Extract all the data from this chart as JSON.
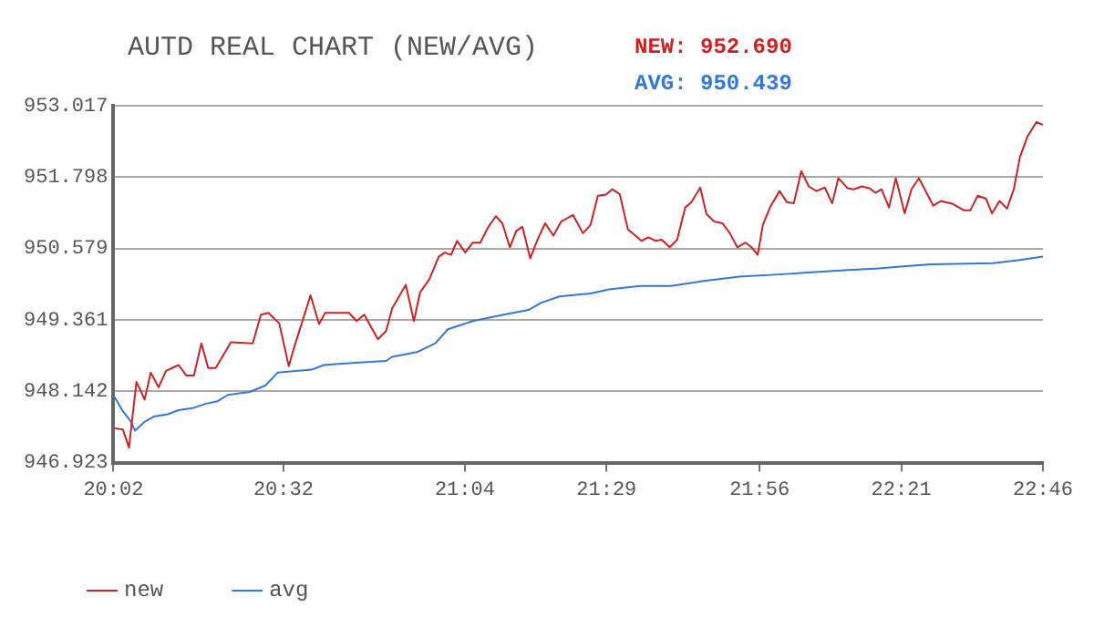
{
  "chart_data": {
    "type": "line",
    "title": "AUTD REAL CHART (NEW/AVG)",
    "annotations": [
      "NEW: 952.690",
      "AVG: 950.439"
    ],
    "xlim": [
      20.0333,
      22.7667
    ],
    "xticks": [
      {
        "value": 20.0333,
        "label": "20:02"
      },
      {
        "value": 20.5333,
        "label": "20:32"
      },
      {
        "value": 21.0667,
        "label": "21:04"
      },
      {
        "value": 21.4833,
        "label": "21:29"
      },
      {
        "value": 21.9333,
        "label": "21:56"
      },
      {
        "value": 22.35,
        "label": "22:21"
      },
      {
        "value": 22.7667,
        "label": "22:46"
      }
    ],
    "ylim": [
      946.923,
      953.017
    ],
    "yticks": [
      946.923,
      948.142,
      949.361,
      950.579,
      951.798,
      953.017
    ],
    "grid": "y",
    "legend": "bottom left",
    "marker": "none",
    "line_style": "solid",
    "series": [
      {
        "name": "new",
        "color": "#cc2222",
        "x": [
          20.037,
          20.061,
          20.079,
          20.088,
          20.101,
          20.115,
          20.125,
          20.143,
          20.166,
          20.188,
          20.225,
          20.248,
          20.27,
          20.292,
          20.312,
          20.334,
          20.379,
          20.443,
          20.467,
          20.489,
          20.521,
          20.549,
          20.562,
          20.613,
          20.638,
          20.656,
          20.726,
          20.748,
          20.771,
          20.811,
          20.835,
          20.853,
          20.893,
          20.917,
          20.935,
          20.962,
          20.99,
          21.008,
          21.026,
          21.044,
          21.068,
          21.09,
          21.112,
          21.136,
          21.158,
          21.177,
          21.199,
          21.218,
          21.236,
          21.259,
          21.281,
          21.303,
          21.327,
          21.35,
          21.385,
          21.414,
          21.436,
          21.458,
          21.482,
          21.5,
          21.522,
          21.546,
          21.586,
          21.606,
          21.628,
          21.646,
          21.669,
          21.691,
          21.715,
          21.733,
          21.759,
          21.777,
          21.8,
          21.824,
          21.846,
          21.868,
          21.892,
          21.91,
          21.928,
          21.943,
          21.964,
          21.992,
          22.014,
          22.034,
          22.056,
          22.078,
          22.101,
          22.125,
          22.147,
          22.165,
          22.192,
          22.21,
          22.234,
          22.256,
          22.274,
          22.292,
          22.314,
          22.334,
          22.36,
          22.38,
          22.402,
          22.444,
          22.466,
          22.502,
          22.535,
          22.553,
          22.575,
          22.599,
          22.617,
          22.639,
          22.661,
          22.681,
          22.699,
          22.721,
          22.748,
          22.7667
        ],
        "values": [
          947.51,
          947.49,
          947.18,
          947.64,
          948.3,
          948.13,
          948.0,
          948.46,
          948.21,
          948.49,
          948.59,
          948.41,
          948.41,
          948.96,
          948.54,
          948.54,
          948.98,
          948.96,
          949.45,
          949.48,
          949.3,
          948.57,
          948.84,
          949.78,
          949.29,
          949.48,
          949.48,
          949.34,
          949.45,
          949.03,
          949.17,
          949.56,
          949.96,
          949.34,
          949.83,
          950.05,
          950.44,
          950.51,
          950.47,
          950.71,
          950.51,
          950.68,
          950.68,
          950.95,
          951.13,
          951.01,
          950.6,
          950.88,
          950.95,
          950.41,
          950.74,
          951.01,
          950.8,
          951.04,
          951.15,
          950.84,
          950.98,
          951.48,
          951.5,
          951.59,
          951.51,
          950.91,
          950.71,
          950.77,
          950.71,
          950.73,
          950.6,
          950.73,
          951.28,
          951.37,
          951.62,
          951.17,
          951.04,
          951.01,
          950.84,
          950.6,
          950.68,
          950.6,
          950.47,
          950.98,
          951.28,
          951.56,
          951.37,
          951.35,
          951.9,
          951.64,
          951.56,
          951.62,
          951.35,
          951.78,
          951.61,
          951.59,
          951.64,
          951.61,
          951.53,
          951.59,
          951.28,
          951.78,
          951.18,
          951.59,
          951.78,
          951.31,
          951.39,
          951.34,
          951.23,
          951.23,
          951.48,
          951.43,
          951.18,
          951.39,
          951.26,
          951.59,
          952.14,
          952.49,
          952.74,
          952.69
        ]
      },
      {
        "name": "avg",
        "color": "#3377dd",
        "x": [
          20.037,
          20.061,
          20.083,
          20.097,
          20.125,
          20.152,
          20.193,
          20.225,
          20.27,
          20.306,
          20.339,
          20.37,
          20.434,
          20.48,
          20.516,
          20.616,
          20.652,
          20.744,
          20.835,
          20.853,
          20.926,
          20.98,
          21.017,
          21.09,
          21.181,
          21.254,
          21.29,
          21.345,
          21.436,
          21.491,
          21.582,
          21.673,
          21.764,
          21.874,
          22.001,
          22.074,
          22.183,
          22.284,
          22.347,
          22.438,
          22.62,
          22.694,
          22.7667
        ],
        "values": [
          948.04,
          947.8,
          947.64,
          947.47,
          947.62,
          947.71,
          947.75,
          947.82,
          947.86,
          947.93,
          947.97,
          948.08,
          948.13,
          948.24,
          948.46,
          948.51,
          948.59,
          948.63,
          948.66,
          948.73,
          948.81,
          948.96,
          949.2,
          949.34,
          949.45,
          949.53,
          949.65,
          949.76,
          949.81,
          949.88,
          949.94,
          949.94,
          950.02,
          950.1,
          950.14,
          950.17,
          950.21,
          950.24,
          950.27,
          950.31,
          950.33,
          950.38,
          950.44
        ]
      }
    ]
  }
}
